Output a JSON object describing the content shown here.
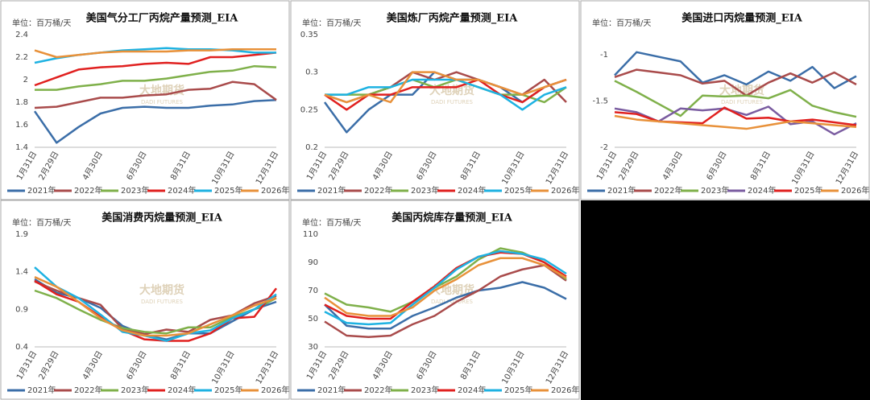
{
  "watermark": {
    "cn": "大地期货",
    "en": "DADI FUTURES"
  },
  "chart_data": [
    {
      "type": "line",
      "title": "美国气分工厂丙烷产量预测_EIA",
      "unit": "单位：百万桶/天",
      "categories": [
        "1月31日",
        "2月29日",
        null,
        "4月30日",
        null,
        "6月30日",
        null,
        "8月31日",
        null,
        "10月31日",
        null,
        "12月31日"
      ],
      "ylim": [
        1.4,
        2.4
      ],
      "yticks": [
        1.4,
        1.6,
        1.8,
        2,
        2.2,
        2.4
      ],
      "grid": false,
      "series": [
        {
          "name": "2021年",
          "color": "#3b6ea8",
          "values": [
            1.72,
            1.44,
            1.58,
            1.7,
            1.75,
            1.76,
            1.75,
            1.75,
            1.77,
            1.78,
            1.81,
            1.82
          ]
        },
        {
          "name": "2022年",
          "color": "#a94b4b",
          "values": [
            1.75,
            1.76,
            1.8,
            1.84,
            1.84,
            1.86,
            1.87,
            1.91,
            1.92,
            1.98,
            1.96,
            1.82
          ]
        },
        {
          "name": "2023年",
          "color": "#7fb04a",
          "values": [
            1.91,
            1.91,
            1.94,
            1.96,
            1.99,
            1.99,
            2.01,
            2.04,
            2.07,
            2.08,
            2.12,
            2.11
          ]
        },
        {
          "name": "2024年",
          "color": "#e0201f",
          "values": [
            1.95,
            2.02,
            2.09,
            2.11,
            2.12,
            2.14,
            2.15,
            2.14,
            2.2,
            2.2,
            2.22,
            2.24
          ]
        },
        {
          "name": "2025年",
          "color": "#1eb2e2",
          "values": [
            2.15,
            2.19,
            2.22,
            2.24,
            2.26,
            2.27,
            2.28,
            2.27,
            2.27,
            2.26,
            2.24,
            2.24
          ]
        },
        {
          "name": "2026年",
          "color": "#e8913a",
          "values": [
            2.26,
            2.2,
            2.22,
            2.24,
            2.25,
            2.25,
            2.25,
            2.26,
            2.26,
            2.27,
            2.27,
            2.27
          ]
        }
      ]
    },
    {
      "type": "line",
      "title": "美国炼厂丙烷产量预测_EIA",
      "unit": "单位：百万桶/天",
      "categories": [
        "1月31日",
        "2月29日",
        null,
        "4月30日",
        null,
        "6月30日",
        null,
        "8月31日",
        null,
        "10月31日",
        null,
        "12月31日"
      ],
      "ylim": [
        0.2,
        0.35
      ],
      "yticks": [
        0.2,
        0.25,
        0.3,
        0.35
      ],
      "grid": false,
      "series": [
        {
          "name": "2021年",
          "color": "#3b6ea8",
          "values": [
            0.26,
            0.22,
            0.25,
            0.27,
            0.27,
            0.3,
            0.29,
            0.29,
            0.28,
            0.26,
            0.28,
            0.29
          ]
        },
        {
          "name": "2022年",
          "color": "#a94b4b",
          "values": [
            0.27,
            0.26,
            0.27,
            0.28,
            0.3,
            0.29,
            0.3,
            0.29,
            0.28,
            0.27,
            0.29,
            0.26
          ]
        },
        {
          "name": "2023年",
          "color": "#7fb04a",
          "values": [
            0.27,
            0.27,
            0.27,
            0.28,
            0.29,
            0.28,
            0.29,
            0.28,
            0.27,
            0.27,
            0.26,
            0.28
          ]
        },
        {
          "name": "2024年",
          "color": "#e0201f",
          "values": [
            0.27,
            0.25,
            0.27,
            0.27,
            0.28,
            0.28,
            0.28,
            0.29,
            0.27,
            0.26,
            0.28,
            0.29
          ]
        },
        {
          "name": "2025年",
          "color": "#1eb2e2",
          "values": [
            0.27,
            0.27,
            0.28,
            0.28,
            0.29,
            0.29,
            0.29,
            0.28,
            0.27,
            0.25,
            0.27,
            0.28
          ]
        },
        {
          "name": "2026年",
          "color": "#e8913a",
          "values": [
            0.27,
            0.26,
            0.27,
            0.26,
            0.3,
            0.3,
            0.29,
            0.29,
            0.28,
            0.27,
            0.28,
            0.29
          ]
        }
      ]
    },
    {
      "type": "line",
      "title": "美国进口丙烷量预测_EIA",
      "unit": "单位：百万桶/天",
      "categories": [
        "1月31日",
        "2月29日",
        null,
        "4月30日",
        null,
        "6月30日",
        null,
        "8月31日",
        null,
        "10月31日",
        null,
        "12月31日"
      ],
      "ylim": [
        -2,
        -0.78
      ],
      "yticks": [
        -2,
        -1.5,
        -1
      ],
      "grid": false,
      "series": [
        {
          "name": "2021年",
          "color": "#3b6ea8",
          "values": [
            -1.22,
            -0.97,
            -1.02,
            -1.07,
            -1.3,
            -1.22,
            -1.32,
            -1.18,
            -1.28,
            -1.13,
            -1.36,
            -1.23
          ]
        },
        {
          "name": "2022年",
          "color": "#a94b4b",
          "values": [
            -1.24,
            -1.16,
            -1.19,
            -1.22,
            -1.31,
            -1.28,
            -1.44,
            -1.3,
            -1.2,
            -1.3,
            -1.19,
            -1.32
          ]
        },
        {
          "name": "2023年",
          "color": "#7fb04a",
          "values": [
            -1.28,
            -1.4,
            -1.53,
            -1.66,
            -1.44,
            -1.45,
            -1.44,
            -1.47,
            -1.38,
            -1.55,
            -1.62,
            -1.67
          ]
        },
        {
          "name": "2024年",
          "color": "#7a5ca0",
          "values": [
            -1.58,
            -1.62,
            -1.72,
            -1.58,
            -1.6,
            -1.58,
            -1.65,
            -1.56,
            -1.75,
            -1.72,
            -1.86,
            -1.74
          ]
        },
        {
          "name": "2025年",
          "color": "#e0201f",
          "values": [
            -1.62,
            -1.64,
            -1.72,
            -1.73,
            -1.74,
            -1.57,
            -1.69,
            -1.68,
            -1.72,
            -1.7,
            -1.73,
            -1.76
          ]
        },
        {
          "name": "2026年",
          "color": "#e8913a",
          "values": [
            -1.66,
            -1.7,
            -1.72,
            -1.74,
            -1.76,
            -1.78,
            -1.8,
            -1.76,
            -1.72,
            -1.74,
            -1.76,
            -1.78
          ]
        }
      ]
    },
    {
      "type": "line",
      "title": "美国消费丙烷量预测_EIA",
      "unit": "单位：百万桶/天",
      "categories": [
        "1月31日",
        "2月29日",
        null,
        "4月30日",
        null,
        "6月30日",
        null,
        "8月31日",
        null,
        "10月31日",
        null,
        "12月31日"
      ],
      "ylim": [
        0.4,
        1.9
      ],
      "yticks": [
        0.4,
        0.9,
        1.4,
        1.9
      ],
      "grid": false,
      "series": [
        {
          "name": "2021年",
          "color": "#3b6ea8",
          "values": [
            1.3,
            1.12,
            1.05,
            0.92,
            0.68,
            0.56,
            0.5,
            0.58,
            0.58,
            0.74,
            0.9,
            1.0
          ]
        },
        {
          "name": "2022年",
          "color": "#a94b4b",
          "values": [
            1.27,
            1.15,
            1.05,
            0.96,
            0.64,
            0.57,
            0.63,
            0.6,
            0.76,
            0.82,
            0.98,
            1.08
          ]
        },
        {
          "name": "2023年",
          "color": "#7fb04a",
          "values": [
            1.15,
            1.05,
            0.9,
            0.76,
            0.65,
            0.6,
            0.58,
            0.66,
            0.66,
            0.8,
            0.9,
            1.05
          ]
        },
        {
          "name": "2024年",
          "color": "#e0201f",
          "values": [
            1.28,
            1.1,
            1.0,
            0.8,
            0.62,
            0.5,
            0.48,
            0.48,
            0.58,
            0.78,
            0.8,
            1.18
          ]
        },
        {
          "name": "2025年",
          "color": "#1eb2e2",
          "values": [
            1.46,
            1.2,
            1.05,
            0.83,
            0.6,
            0.55,
            0.48,
            0.58,
            0.62,
            0.78,
            0.9,
            1.1
          ]
        },
        {
          "name": "2026年",
          "color": "#e8913a",
          "values": [
            1.33,
            1.2,
            1.0,
            0.78,
            0.62,
            0.55,
            0.55,
            0.58,
            0.7,
            0.82,
            0.95,
            1.05
          ]
        }
      ]
    },
    {
      "type": "line",
      "title": "美国丙烷库存量预测_EIA",
      "unit": "单位：百万桶/天",
      "categories": [
        "1月31日",
        "2月29日",
        null,
        "4月30日",
        null,
        "6月30日",
        null,
        "8月31日",
        null,
        "10月31日",
        null,
        "12月31日"
      ],
      "ylim": [
        30,
        110
      ],
      "yticks": [
        30,
        50,
        70,
        90,
        110
      ],
      "grid": false,
      "series": [
        {
          "name": "2021年",
          "color": "#3b6ea8",
          "values": [
            60,
            45,
            43,
            43,
            52,
            58,
            65,
            70,
            72,
            76,
            72,
            64
          ]
        },
        {
          "name": "2022年",
          "color": "#a94b4b",
          "values": [
            48,
            38,
            37,
            38,
            46,
            52,
            62,
            70,
            80,
            85,
            88,
            77
          ]
        },
        {
          "name": "2023年",
          "color": "#7fb04a",
          "values": [
            68,
            60,
            58,
            55,
            62,
            72,
            80,
            92,
            100,
            97,
            90,
            78
          ]
        },
        {
          "name": "2024年",
          "color": "#e0201f",
          "values": [
            60,
            52,
            50,
            50,
            62,
            73,
            86,
            94,
            97,
            96,
            90,
            80
          ]
        },
        {
          "name": "2025年",
          "color": "#1eb2e2",
          "values": [
            55,
            47,
            46,
            47,
            60,
            72,
            85,
            94,
            98,
            96,
            92,
            82
          ]
        },
        {
          "name": "2026年",
          "color": "#e8913a",
          "values": [
            65,
            54,
            52,
            52,
            58,
            70,
            78,
            88,
            93,
            93,
            88,
            79
          ]
        }
      ]
    }
  ]
}
